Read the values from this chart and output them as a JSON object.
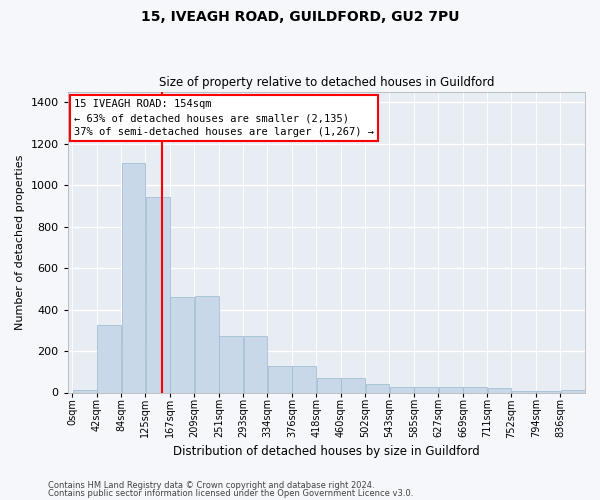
{
  "title1": "15, IVEAGH ROAD, GUILDFORD, GU2 7PU",
  "title2": "Size of property relative to detached houses in Guildford",
  "xlabel": "Distribution of detached houses by size in Guildford",
  "ylabel": "Number of detached properties",
  "footer1": "Contains HM Land Registry data © Crown copyright and database right 2024.",
  "footer2": "Contains public sector information licensed under the Open Government Licence v3.0.",
  "annotation_line1": "15 IVEAGH ROAD: 154sqm",
  "annotation_line2": "← 63% of detached houses are smaller (2,135)",
  "annotation_line3": "37% of semi-detached houses are larger (1,267) →",
  "bar_color": "#c8d8e8",
  "bar_edge_color": "#9ab8d0",
  "red_line_x": 154,
  "bin_edges": [
    0,
    42,
    84,
    125,
    167,
    209,
    251,
    293,
    334,
    376,
    418,
    460,
    502,
    543,
    585,
    627,
    669,
    711,
    752,
    794,
    836
  ],
  "values": [
    10,
    325,
    1110,
    945,
    460,
    465,
    275,
    275,
    130,
    130,
    70,
    70,
    40,
    25,
    25,
    25,
    25,
    20,
    5,
    5,
    10
  ],
  "categories": [
    "0sqm",
    "42sqm",
    "84sqm",
    "125sqm",
    "167sqm",
    "209sqm",
    "251sqm",
    "293sqm",
    "334sqm",
    "376sqm",
    "418sqm",
    "460sqm",
    "502sqm",
    "543sqm",
    "585sqm",
    "627sqm",
    "669sqm",
    "711sqm",
    "752sqm",
    "794sqm",
    "836sqm"
  ],
  "ylim": [
    0,
    1450
  ],
  "yticks": [
    0,
    200,
    400,
    600,
    800,
    1000,
    1200,
    1400
  ],
  "fig_bg_color": "#f5f7fa",
  "plot_bg_color": "#e8edf3"
}
